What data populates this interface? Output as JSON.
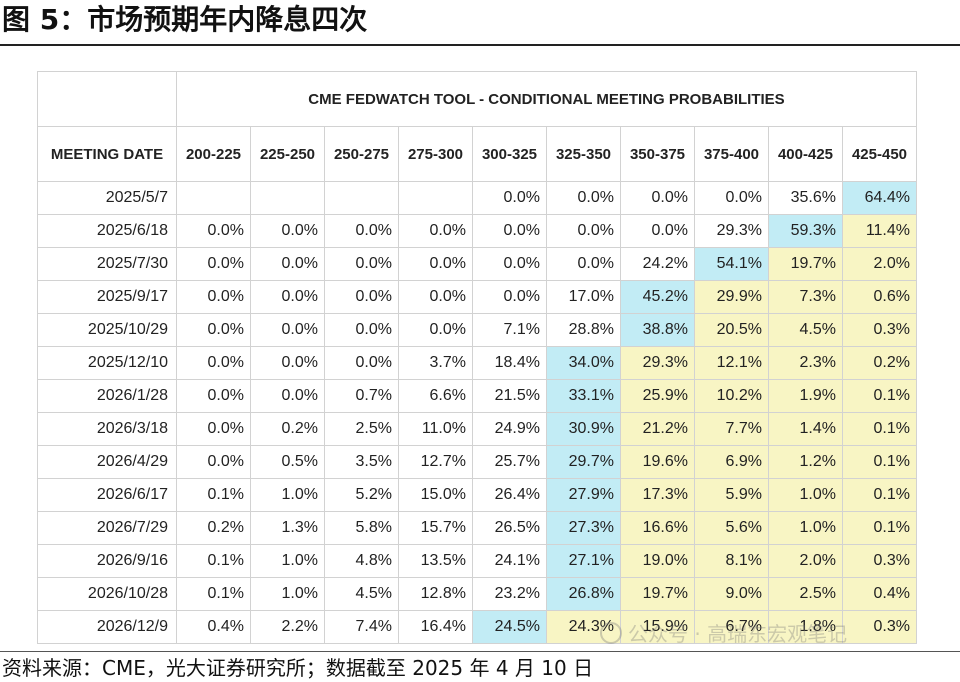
{
  "title": "图 5：市场预期年内降息四次",
  "table": {
    "banner": "CME FEDWATCH TOOL - CONDITIONAL MEETING PROBABILITIES",
    "date_header": "MEETING DATE",
    "ranges": [
      "200-225",
      "225-250",
      "250-275",
      "275-300",
      "300-325",
      "325-350",
      "350-375",
      "375-400",
      "400-425",
      "425-450"
    ],
    "rows": [
      {
        "date": "2025/5/7",
        "values": [
          "",
          "",
          "",
          "",
          "0.0%",
          "0.0%",
          "0.0%",
          "0.0%",
          "35.6%",
          "64.4%"
        ],
        "tint": [
          "",
          "",
          "",
          "",
          "",
          "",
          "",
          "",
          "",
          "c"
        ]
      },
      {
        "date": "2025/6/18",
        "values": [
          "0.0%",
          "0.0%",
          "0.0%",
          "0.0%",
          "0.0%",
          "0.0%",
          "0.0%",
          "29.3%",
          "59.3%",
          "11.4%"
        ],
        "tint": [
          "",
          "",
          "",
          "",
          "",
          "",
          "",
          "",
          "c",
          "y"
        ]
      },
      {
        "date": "2025/7/30",
        "values": [
          "0.0%",
          "0.0%",
          "0.0%",
          "0.0%",
          "0.0%",
          "0.0%",
          "24.2%",
          "54.1%",
          "19.7%",
          "2.0%"
        ],
        "tint": [
          "",
          "",
          "",
          "",
          "",
          "",
          "",
          "c",
          "y",
          "y"
        ]
      },
      {
        "date": "2025/9/17",
        "values": [
          "0.0%",
          "0.0%",
          "0.0%",
          "0.0%",
          "0.0%",
          "17.0%",
          "45.2%",
          "29.9%",
          "7.3%",
          "0.6%"
        ],
        "tint": [
          "",
          "",
          "",
          "",
          "",
          "",
          "c",
          "y",
          "y",
          "y"
        ]
      },
      {
        "date": "2025/10/29",
        "values": [
          "0.0%",
          "0.0%",
          "0.0%",
          "0.0%",
          "7.1%",
          "28.8%",
          "38.8%",
          "20.5%",
          "4.5%",
          "0.3%"
        ],
        "tint": [
          "",
          "",
          "",
          "",
          "",
          "",
          "c",
          "y",
          "y",
          "y"
        ]
      },
      {
        "date": "2025/12/10",
        "values": [
          "0.0%",
          "0.0%",
          "0.0%",
          "3.7%",
          "18.4%",
          "34.0%",
          "29.3%",
          "12.1%",
          "2.3%",
          "0.2%"
        ],
        "tint": [
          "",
          "",
          "",
          "",
          "",
          "c",
          "y",
          "y",
          "y",
          "y"
        ]
      },
      {
        "date": "2026/1/28",
        "values": [
          "0.0%",
          "0.0%",
          "0.7%",
          "6.6%",
          "21.5%",
          "33.1%",
          "25.9%",
          "10.2%",
          "1.9%",
          "0.1%"
        ],
        "tint": [
          "",
          "",
          "",
          "",
          "",
          "c",
          "y",
          "y",
          "y",
          "y"
        ]
      },
      {
        "date": "2026/3/18",
        "values": [
          "0.0%",
          "0.2%",
          "2.5%",
          "11.0%",
          "24.9%",
          "30.9%",
          "21.2%",
          "7.7%",
          "1.4%",
          "0.1%"
        ],
        "tint": [
          "",
          "",
          "",
          "",
          "",
          "c",
          "y",
          "y",
          "y",
          "y"
        ]
      },
      {
        "date": "2026/4/29",
        "values": [
          "0.0%",
          "0.5%",
          "3.5%",
          "12.7%",
          "25.7%",
          "29.7%",
          "19.6%",
          "6.9%",
          "1.2%",
          "0.1%"
        ],
        "tint": [
          "",
          "",
          "",
          "",
          "",
          "c",
          "y",
          "y",
          "y",
          "y"
        ]
      },
      {
        "date": "2026/6/17",
        "values": [
          "0.1%",
          "1.0%",
          "5.2%",
          "15.0%",
          "26.4%",
          "27.9%",
          "17.3%",
          "5.9%",
          "1.0%",
          "0.1%"
        ],
        "tint": [
          "",
          "",
          "",
          "",
          "",
          "c",
          "y",
          "y",
          "y",
          "y"
        ]
      },
      {
        "date": "2026/7/29",
        "values": [
          "0.2%",
          "1.3%",
          "5.8%",
          "15.7%",
          "26.5%",
          "27.3%",
          "16.6%",
          "5.6%",
          "1.0%",
          "0.1%"
        ],
        "tint": [
          "",
          "",
          "",
          "",
          "",
          "c",
          "y",
          "y",
          "y",
          "y"
        ]
      },
      {
        "date": "2026/9/16",
        "values": [
          "0.1%",
          "1.0%",
          "4.8%",
          "13.5%",
          "24.1%",
          "27.1%",
          "19.0%",
          "8.1%",
          "2.0%",
          "0.3%"
        ],
        "tint": [
          "",
          "",
          "",
          "",
          "",
          "c",
          "y",
          "y",
          "y",
          "y"
        ]
      },
      {
        "date": "2026/10/28",
        "values": [
          "0.1%",
          "1.0%",
          "4.5%",
          "12.8%",
          "23.2%",
          "26.8%",
          "19.7%",
          "9.0%",
          "2.5%",
          "0.4%"
        ],
        "tint": [
          "",
          "",
          "",
          "",
          "",
          "c",
          "y",
          "y",
          "y",
          "y"
        ]
      },
      {
        "date": "2026/12/9",
        "values": [
          "0.4%",
          "2.2%",
          "7.4%",
          "16.4%",
          "24.5%",
          "24.3%",
          "15.9%",
          "6.7%",
          "1.8%",
          "0.3%"
        ],
        "tint": [
          "",
          "",
          "",
          "",
          "c",
          "y",
          "y",
          "y",
          "y",
          "y"
        ]
      }
    ],
    "colors": {
      "c": "#c2ecf5",
      "y": "#f8f5c4"
    }
  },
  "source": "资料来源：CME，光大证券研究所；数据截至 2025 年 4 月 10 日",
  "watermark": "公众号 · 高瑞东宏观笔记"
}
